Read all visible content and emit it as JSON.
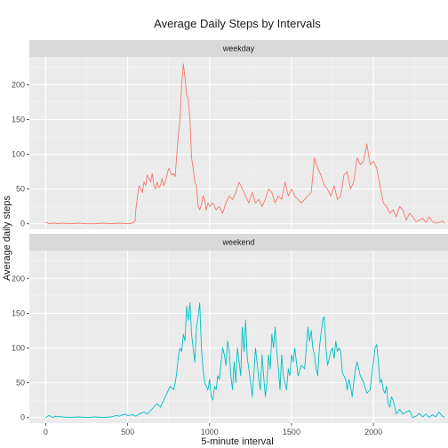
{
  "chart_data": {
    "type": "line",
    "title": "Average Daily Steps by Intervals",
    "xlabel": "5-minute interval",
    "ylabel": "Average daily steps",
    "xlim": [
      -100,
      2455
    ],
    "ylim": [
      -8,
      240
    ],
    "x_ticks": [
      0,
      500,
      1000,
      1500,
      2000
    ],
    "y_ticks": [
      0,
      50,
      100,
      150,
      200
    ],
    "grid": true,
    "legend": "none",
    "series": [
      {
        "name": "weekday",
        "color": "#F8766D",
        "points": [
          [
            0,
            2
          ],
          [
            25,
            0
          ],
          [
            50,
            1
          ],
          [
            75,
            0
          ],
          [
            100,
            1
          ],
          [
            150,
            0
          ],
          [
            200,
            1
          ],
          [
            250,
            0
          ],
          [
            300,
            0
          ],
          [
            350,
            1
          ],
          [
            400,
            0
          ],
          [
            450,
            1
          ],
          [
            500,
            0
          ],
          [
            530,
            1
          ],
          [
            545,
            4
          ],
          [
            550,
            20
          ],
          [
            560,
            40
          ],
          [
            570,
            55
          ],
          [
            580,
            50
          ],
          [
            590,
            45
          ],
          [
            600,
            60
          ],
          [
            610,
            55
          ],
          [
            620,
            70
          ],
          [
            630,
            65
          ],
          [
            640,
            60
          ],
          [
            650,
            72
          ],
          [
            660,
            55
          ],
          [
            670,
            50
          ],
          [
            680,
            60
          ],
          [
            690,
            52
          ],
          [
            700,
            55
          ],
          [
            710,
            65
          ],
          [
            720,
            55
          ],
          [
            730,
            60
          ],
          [
            740,
            70
          ],
          [
            750,
            80
          ],
          [
            760,
            75
          ],
          [
            770,
            70
          ],
          [
            780,
            72
          ],
          [
            790,
            68
          ],
          [
            800,
            100
          ],
          [
            810,
            130
          ],
          [
            820,
            150
          ],
          [
            830,
            200
          ],
          [
            840,
            230
          ],
          [
            850,
            210
          ],
          [
            860,
            185
          ],
          [
            870,
            180
          ],
          [
            880,
            150
          ],
          [
            890,
            95
          ],
          [
            900,
            80
          ],
          [
            910,
            60
          ],
          [
            920,
            55
          ],
          [
            930,
            25
          ],
          [
            940,
            20
          ],
          [
            950,
            28
          ],
          [
            960,
            40
          ],
          [
            970,
            35
          ],
          [
            980,
            20
          ],
          [
            990,
            30
          ],
          [
            1000,
            25
          ],
          [
            1020,
            30
          ],
          [
            1040,
            20
          ],
          [
            1060,
            25
          ],
          [
            1080,
            15
          ],
          [
            1100,
            30
          ],
          [
            1120,
            40
          ],
          [
            1140,
            35
          ],
          [
            1160,
            45
          ],
          [
            1180,
            60
          ],
          [
            1200,
            50
          ],
          [
            1220,
            40
          ],
          [
            1240,
            30
          ],
          [
            1260,
            45
          ],
          [
            1280,
            30
          ],
          [
            1300,
            35
          ],
          [
            1320,
            25
          ],
          [
            1340,
            35
          ],
          [
            1360,
            50
          ],
          [
            1380,
            45
          ],
          [
            1400,
            30
          ],
          [
            1420,
            40
          ],
          [
            1440,
            35
          ],
          [
            1460,
            60
          ],
          [
            1480,
            40
          ],
          [
            1500,
            50
          ],
          [
            1520,
            40
          ],
          [
            1540,
            35
          ],
          [
            1560,
            30
          ],
          [
            1580,
            35
          ],
          [
            1600,
            40
          ],
          [
            1620,
            45
          ],
          [
            1640,
            95
          ],
          [
            1660,
            80
          ],
          [
            1680,
            70
          ],
          [
            1700,
            55
          ],
          [
            1720,
            50
          ],
          [
            1740,
            40
          ],
          [
            1760,
            55
          ],
          [
            1780,
            35
          ],
          [
            1800,
            40
          ],
          [
            1820,
            70
          ],
          [
            1840,
            75
          ],
          [
            1860,
            50
          ],
          [
            1880,
            60
          ],
          [
            1900,
            95
          ],
          [
            1920,
            85
          ],
          [
            1940,
            90
          ],
          [
            1960,
            115
          ],
          [
            1980,
            85
          ],
          [
            2000,
            90
          ],
          [
            2020,
            80
          ],
          [
            2040,
            55
          ],
          [
            2060,
            30
          ],
          [
            2080,
            25
          ],
          [
            2100,
            15
          ],
          [
            2120,
            20
          ],
          [
            2140,
            10
          ],
          [
            2160,
            25
          ],
          [
            2180,
            20
          ],
          [
            2200,
            5
          ],
          [
            2220,
            15
          ],
          [
            2240,
            10
          ],
          [
            2260,
            3
          ],
          [
            2280,
            5
          ],
          [
            2300,
            8
          ],
          [
            2320,
            2
          ],
          [
            2340,
            10
          ],
          [
            2360,
            3
          ],
          [
            2380,
            1
          ],
          [
            2400,
            2
          ],
          [
            2420,
            4
          ],
          [
            2435,
            1
          ]
        ]
      },
      {
        "name": "weekend",
        "color": "#00BFC4",
        "points": [
          [
            0,
            0
          ],
          [
            20,
            3
          ],
          [
            40,
            0
          ],
          [
            60,
            2
          ],
          [
            100,
            1
          ],
          [
            140,
            0
          ],
          [
            200,
            1
          ],
          [
            250,
            0
          ],
          [
            300,
            1
          ],
          [
            350,
            0
          ],
          [
            400,
            1
          ],
          [
            430,
            3
          ],
          [
            450,
            2
          ],
          [
            480,
            5
          ],
          [
            500,
            3
          ],
          [
            530,
            4
          ],
          [
            550,
            2
          ],
          [
            570,
            5
          ],
          [
            600,
            8
          ],
          [
            620,
            5
          ],
          [
            640,
            10
          ],
          [
            660,
            15
          ],
          [
            680,
            20
          ],
          [
            700,
            15
          ],
          [
            720,
            25
          ],
          [
            740,
            35
          ],
          [
            760,
            45
          ],
          [
            780,
            40
          ],
          [
            790,
            50
          ],
          [
            800,
            65
          ],
          [
            810,
            90
          ],
          [
            820,
            100
          ],
          [
            830,
            95
          ],
          [
            840,
            120
          ],
          [
            850,
            110
          ],
          [
            860,
            160
          ],
          [
            870,
            140
          ],
          [
            880,
            165
          ],
          [
            890,
            120
          ],
          [
            900,
            100
          ],
          [
            910,
            80
          ],
          [
            920,
            130
          ],
          [
            930,
            145
          ],
          [
            940,
            165
          ],
          [
            950,
            100
          ],
          [
            960,
            70
          ],
          [
            970,
            50
          ],
          [
            980,
            45
          ],
          [
            990,
            40
          ],
          [
            1000,
            55
          ],
          [
            1010,
            30
          ],
          [
            1020,
            25
          ],
          [
            1030,
            45
          ],
          [
            1040,
            40
          ],
          [
            1050,
            60
          ],
          [
            1060,
            55
          ],
          [
            1080,
            100
          ],
          [
            1090,
            90
          ],
          [
            1100,
            75
          ],
          [
            1110,
            110
          ],
          [
            1120,
            95
          ],
          [
            1130,
            60
          ],
          [
            1140,
            40
          ],
          [
            1150,
            80
          ],
          [
            1160,
            50
          ],
          [
            1170,
            100
          ],
          [
            1180,
            80
          ],
          [
            1190,
            60
          ],
          [
            1200,
            130
          ],
          [
            1210,
            95
          ],
          [
            1220,
            140
          ],
          [
            1230,
            85
          ],
          [
            1240,
            70
          ],
          [
            1250,
            50
          ],
          [
            1260,
            30
          ],
          [
            1270,
            60
          ],
          [
            1280,
            100
          ],
          [
            1290,
            80
          ],
          [
            1300,
            55
          ],
          [
            1310,
            40
          ],
          [
            1320,
            90
          ],
          [
            1330,
            60
          ],
          [
            1340,
            30
          ],
          [
            1350,
            50
          ],
          [
            1360,
            90
          ],
          [
            1370,
            70
          ],
          [
            1380,
            120
          ],
          [
            1390,
            100
          ],
          [
            1400,
            130
          ],
          [
            1410,
            95
          ],
          [
            1420,
            70
          ],
          [
            1430,
            40
          ],
          [
            1440,
            90
          ],
          [
            1450,
            60
          ],
          [
            1460,
            50
          ],
          [
            1470,
            40
          ],
          [
            1480,
            70
          ],
          [
            1490,
            60
          ],
          [
            1500,
            90
          ],
          [
            1510,
            80
          ],
          [
            1520,
            100
          ],
          [
            1540,
            60
          ],
          [
            1560,
            75
          ],
          [
            1580,
            70
          ],
          [
            1600,
            130
          ],
          [
            1610,
            110
          ],
          [
            1620,
            125
          ],
          [
            1630,
            100
          ],
          [
            1640,
            90
          ],
          [
            1650,
            70
          ],
          [
            1660,
            60
          ],
          [
            1670,
            100
          ],
          [
            1680,
            120
          ],
          [
            1690,
            140
          ],
          [
            1700,
            145
          ],
          [
            1710,
            100
          ],
          [
            1720,
            75
          ],
          [
            1730,
            85
          ],
          [
            1740,
            95
          ],
          [
            1750,
            100
          ],
          [
            1760,
            85
          ],
          [
            1770,
            110
          ],
          [
            1780,
            95
          ],
          [
            1790,
            100
          ],
          [
            1800,
            95
          ],
          [
            1810,
            65
          ],
          [
            1820,
            60
          ],
          [
            1830,
            55
          ],
          [
            1840,
            40
          ],
          [
            1850,
            55
          ],
          [
            1860,
            45
          ],
          [
            1870,
            30
          ],
          [
            1880,
            50
          ],
          [
            1890,
            70
          ],
          [
            1900,
            80
          ],
          [
            1920,
            60
          ],
          [
            1940,
            50
          ],
          [
            1960,
            35
          ],
          [
            1980,
            40
          ],
          [
            2000,
            80
          ],
          [
            2010,
            100
          ],
          [
            2020,
            105
          ],
          [
            2030,
            80
          ],
          [
            2040,
            50
          ],
          [
            2050,
            55
          ],
          [
            2060,
            40
          ],
          [
            2070,
            35
          ],
          [
            2080,
            45
          ],
          [
            2090,
            20
          ],
          [
            2100,
            15
          ],
          [
            2110,
            30
          ],
          [
            2120,
            25
          ],
          [
            2130,
            15
          ],
          [
            2140,
            5
          ],
          [
            2160,
            12
          ],
          [
            2180,
            5
          ],
          [
            2200,
            8
          ],
          [
            2220,
            10
          ],
          [
            2240,
            0
          ],
          [
            2260,
            2
          ],
          [
            2280,
            6
          ],
          [
            2300,
            1
          ],
          [
            2320,
            5
          ],
          [
            2340,
            0
          ],
          [
            2360,
            4
          ],
          [
            2380,
            1
          ],
          [
            2400,
            8
          ],
          [
            2420,
            2
          ],
          [
            2435,
            0
          ]
        ]
      }
    ]
  }
}
